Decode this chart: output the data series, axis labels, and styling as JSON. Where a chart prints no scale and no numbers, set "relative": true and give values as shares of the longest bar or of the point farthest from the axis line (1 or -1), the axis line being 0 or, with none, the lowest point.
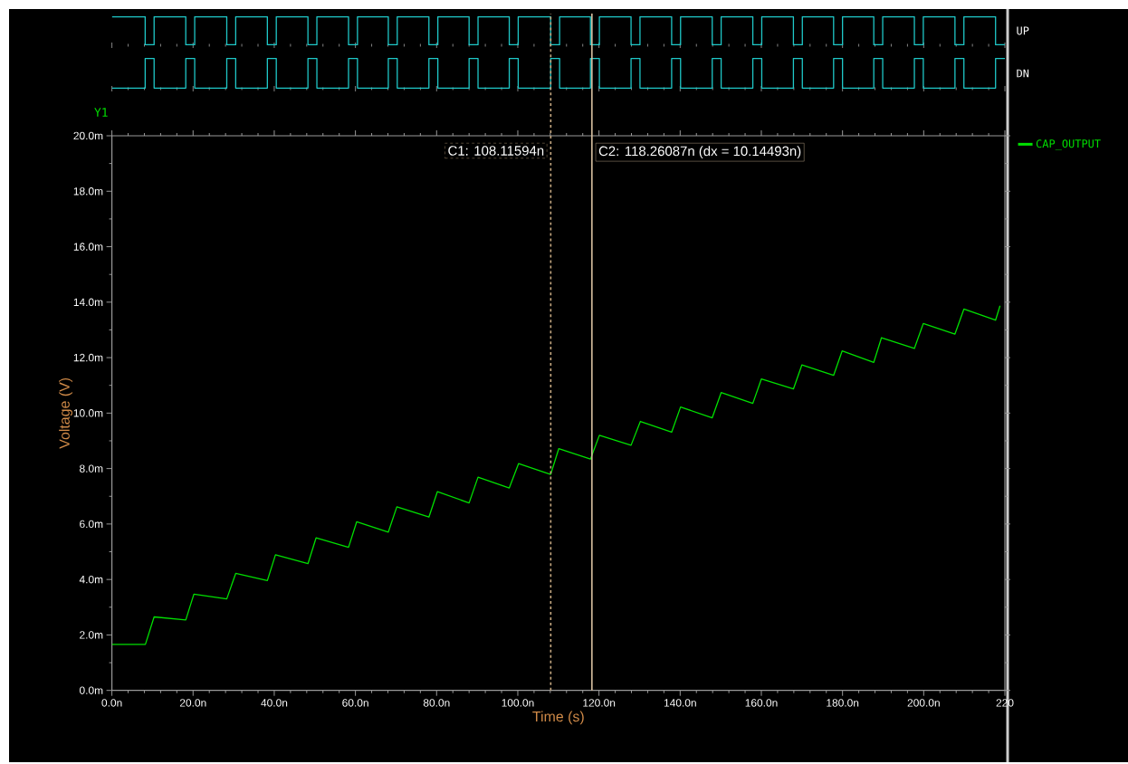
{
  "chart_data": [
    {
      "type": "step",
      "relative": true,
      "tick_labels": false,
      "xlim": [
        0,
        220
      ],
      "xticks": [
        0,
        20,
        40,
        60,
        80,
        100,
        120,
        140,
        160,
        180,
        200,
        220
      ],
      "series": [
        {
          "name": "UP",
          "color": "#1fc8c8",
          "x": [
            0,
            8.2,
            10.4,
            18.2,
            20.4,
            28.3,
            30.5,
            38.3,
            40.5,
            48.3,
            50.5,
            58.3,
            60.5,
            68.1,
            70.3,
            78.1,
            80.3,
            88.0,
            90.2,
            97.9,
            100.1,
            108.1,
            110.3,
            117.9,
            120.1,
            127.9,
            130.1,
            137.9,
            140.1,
            147.9,
            150.1,
            157.9,
            160.1,
            167.9,
            170.1,
            177.8,
            180.0,
            187.7,
            189.9,
            197.7,
            199.9,
            207.7,
            209.9,
            217.7,
            220
          ],
          "values": [
            1,
            0,
            1,
            0,
            1,
            0,
            1,
            0,
            1,
            0,
            1,
            0,
            1,
            0,
            1,
            0,
            1,
            0,
            1,
            0,
            1,
            0,
            1,
            0,
            1,
            0,
            1,
            0,
            1,
            0,
            1,
            0,
            1,
            0,
            1,
            0,
            1,
            0,
            1,
            0,
            1,
            0,
            1,
            0,
            0
          ]
        }
      ]
    },
    {
      "type": "step",
      "relative": true,
      "tick_labels": false,
      "xlim": [
        0,
        220
      ],
      "xticks": [
        0,
        20,
        40,
        60,
        80,
        100,
        120,
        140,
        160,
        180,
        200,
        220
      ],
      "series": [
        {
          "name": "DN",
          "color": "#1fc8c8",
          "x": [
            0,
            8.2,
            10.4,
            18.2,
            20.4,
            28.3,
            30.5,
            38.3,
            40.5,
            48.3,
            50.5,
            58.3,
            60.5,
            68.1,
            70.3,
            78.1,
            80.3,
            88.0,
            90.2,
            97.9,
            100.1,
            108.1,
            110.3,
            117.9,
            120.1,
            127.9,
            130.1,
            137.9,
            140.1,
            147.9,
            150.1,
            157.9,
            160.1,
            167.9,
            170.1,
            177.8,
            180.0,
            187.7,
            189.9,
            197.7,
            199.9,
            207.7,
            209.9,
            217.7,
            220
          ],
          "values": [
            0,
            1,
            0,
            1,
            0,
            1,
            0,
            1,
            0,
            1,
            0,
            1,
            0,
            1,
            0,
            1,
            0,
            1,
            0,
            1,
            0,
            1,
            0,
            1,
            0,
            1,
            0,
            1,
            0,
            1,
            0,
            1,
            0,
            1,
            0,
            1,
            0,
            1,
            0,
            1,
            0,
            1,
            0,
            1,
            1
          ]
        }
      ]
    },
    {
      "type": "line",
      "xlabel": "Time (s)",
      "ylabel": "Voltage (V)",
      "annotations": [
        "Y1"
      ],
      "legend": "right",
      "xlim": [
        0,
        220
      ],
      "ylim": [
        0,
        20
      ],
      "xticks": [
        {
          "value": 0,
          "label": "0.0n"
        },
        {
          "value": 20,
          "label": "20.0n"
        },
        {
          "value": 40,
          "label": "40.0n"
        },
        {
          "value": 60,
          "label": "60.0n"
        },
        {
          "value": 80,
          "label": "80.0n"
        },
        {
          "value": 100,
          "label": "100.0n"
        },
        {
          "value": 120,
          "label": "120.0n"
        },
        {
          "value": 140,
          "label": "140.0n"
        },
        {
          "value": 160,
          "label": "160.0n"
        },
        {
          "value": 180,
          "label": "180.0n"
        },
        {
          "value": 200,
          "label": "200.0n"
        },
        {
          "value": 220,
          "label": "220"
        }
      ],
      "yticks": [
        {
          "value": 0,
          "label": "0.0m"
        },
        {
          "value": 2,
          "label": "2.0m"
        },
        {
          "value": 4,
          "label": "4.0m"
        },
        {
          "value": 6,
          "label": "6.0m"
        },
        {
          "value": 8,
          "label": "8.0m"
        },
        {
          "value": 10,
          "label": "10.0m"
        },
        {
          "value": 12,
          "label": "12.0m"
        },
        {
          "value": 14,
          "label": "14.0m"
        },
        {
          "value": 16,
          "label": "16.0m"
        },
        {
          "value": 18,
          "label": "18.0m"
        },
        {
          "value": 20,
          "label": "20.0m"
        }
      ],
      "ref_lines": [
        {
          "axis": "x",
          "value": 108.11594,
          "label": "C1: 108.11594n",
          "color": "#c8aa82",
          "line_style": "dashed"
        },
        {
          "axis": "x",
          "value": 118.26087,
          "label": "C2: 118.26087n (dx = 10.14493n)",
          "color": "#d8c0a0",
          "line_style": "solid"
        }
      ],
      "series": [
        {
          "name": "CAP_OUTPUT",
          "color": "#00e000",
          "x": [
            0,
            8.25,
            10.4,
            18.2,
            20.2,
            28.3,
            30.5,
            38.3,
            40.3,
            48.3,
            50.3,
            58.3,
            60.3,
            68.1,
            70.2,
            78.1,
            80.2,
            88.0,
            90.2,
            97.9,
            100.2,
            108.1,
            110.1,
            117.9,
            120.1,
            127.9,
            130.2,
            137.9,
            140.1,
            147.9,
            150.1,
            157.9,
            160.0,
            167.9,
            170.0,
            177.8,
            179.9,
            187.7,
            189.6,
            197.7,
            199.9,
            207.7,
            209.9,
            217.7,
            218.8
          ],
          "values": [
            1.66,
            1.66,
            2.65,
            2.54,
            3.47,
            3.3,
            4.22,
            3.96,
            4.89,
            4.57,
            5.5,
            5.16,
            6.08,
            5.71,
            6.62,
            6.25,
            7.17,
            6.76,
            7.69,
            7.3,
            8.18,
            7.79,
            8.72,
            8.34,
            9.2,
            8.84,
            9.7,
            9.31,
            10.22,
            9.83,
            10.74,
            10.35,
            11.23,
            10.87,
            11.74,
            11.36,
            12.24,
            11.83,
            12.72,
            12.33,
            13.23,
            12.85,
            13.75,
            13.35,
            13.87
          ]
        }
      ]
    }
  ]
}
